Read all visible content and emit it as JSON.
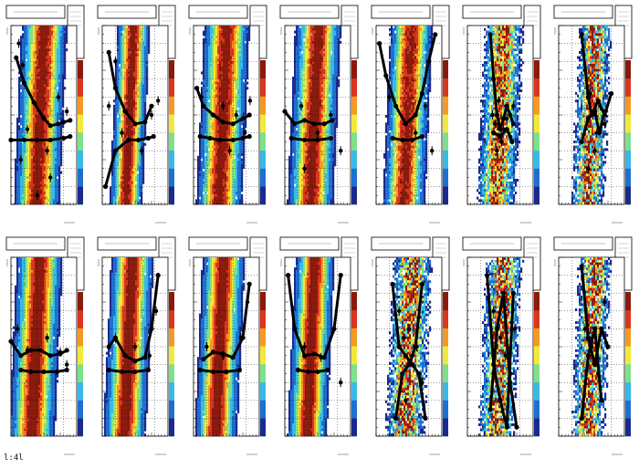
{
  "footer": {
    "text": "l:4l"
  },
  "chart_data": {
    "type": "heatmap",
    "layout": {
      "rows": 2,
      "cols": 7
    },
    "xlim": [
      0,
      1
    ],
    "ylim": [
      0,
      1
    ],
    "colormap": [
      "#1a2a8c",
      "#1f6fd0",
      "#39b9e6",
      "#7fe08a",
      "#f2e93a",
      "#f39a25",
      "#d9361e",
      "#8a1a0c"
    ],
    "panels": [
      {
        "band_center": 0.45,
        "band_width": 0.28,
        "noise": 0.1,
        "upper": {
          "x": [
            0.08,
            0.2,
            0.35,
            0.5,
            0.6,
            0.72,
            0.8,
            0.9
          ],
          "y": [
            0.82,
            0.68,
            0.57,
            0.48,
            0.44,
            0.45,
            0.46,
            0.47
          ]
        },
        "lower": {
          "x": [
            0.0,
            0.2,
            0.4,
            0.6,
            0.8,
            0.9
          ],
          "y": [
            0.36,
            0.36,
            0.36,
            0.36,
            0.37,
            0.38
          ]
        },
        "scatter": {
          "x": [
            0.12,
            0.18,
            0.25,
            0.55,
            0.72,
            0.85,
            0.15,
            0.6,
            0.4
          ],
          "y": [
            0.9,
            0.78,
            0.42,
            0.3,
            0.6,
            0.52,
            0.25,
            0.15,
            0.05
          ]
        }
      },
      {
        "band_center": 0.42,
        "band_width": 0.2,
        "noise": 0.1,
        "upper": {
          "x": [
            0.1,
            0.2,
            0.35,
            0.5,
            0.65,
            0.75
          ],
          "y": [
            0.85,
            0.65,
            0.52,
            0.45,
            0.46,
            0.55
          ]
        },
        "lower": {
          "x": [
            0.05,
            0.2,
            0.4,
            0.55,
            0.7,
            0.78
          ],
          "y": [
            0.1,
            0.3,
            0.36,
            0.36,
            0.37,
            0.38
          ]
        },
        "scatter": {
          "x": [
            0.1,
            0.2,
            0.3,
            0.6,
            0.75,
            0.85
          ],
          "y": [
            0.55,
            0.8,
            0.4,
            0.3,
            0.5,
            0.58
          ]
        }
      },
      {
        "band_center": 0.45,
        "band_width": 0.28,
        "noise": 0.1,
        "upper": {
          "x": [
            0.05,
            0.15,
            0.3,
            0.45,
            0.6,
            0.75,
            0.85
          ],
          "y": [
            0.65,
            0.55,
            0.5,
            0.46,
            0.45,
            0.48,
            0.5
          ]
        },
        "lower": {
          "x": [
            0.1,
            0.25,
            0.4,
            0.6,
            0.75,
            0.85
          ],
          "y": [
            0.38,
            0.37,
            0.36,
            0.36,
            0.37,
            0.38
          ]
        },
        "scatter": {
          "x": [
            0.12,
            0.45,
            0.55,
            0.65,
            0.78,
            0.86
          ],
          "y": [
            0.6,
            0.55,
            0.3,
            0.5,
            0.4,
            0.58
          ]
        }
      },
      {
        "band_center": 0.45,
        "band_width": 0.28,
        "noise": 0.1,
        "upper": {
          "x": [
            0.0,
            0.15,
            0.3,
            0.45,
            0.6,
            0.72
          ],
          "y": [
            0.52,
            0.45,
            0.47,
            0.45,
            0.45,
            0.47
          ]
        },
        "lower": {
          "x": [
            0.1,
            0.3,
            0.5,
            0.7
          ],
          "y": [
            0.37,
            0.36,
            0.36,
            0.37
          ]
        },
        "scatter": {
          "x": [
            0.25,
            0.5,
            0.7,
            0.85,
            0.3
          ],
          "y": [
            0.55,
            0.4,
            0.5,
            0.3,
            0.2
          ]
        }
      },
      {
        "band_center": 0.48,
        "band_width": 0.26,
        "noise": 0.15,
        "upper": {
          "x": [
            0.05,
            0.15,
            0.3,
            0.45,
            0.6,
            0.7,
            0.8,
            0.9
          ],
          "y": [
            0.9,
            0.72,
            0.55,
            0.45,
            0.5,
            0.62,
            0.8,
            0.95
          ]
        },
        "lower": {
          "x": [
            0.25,
            0.4,
            0.55,
            0.7
          ],
          "y": [
            0.37,
            0.36,
            0.36,
            0.38
          ]
        },
        "scatter": {
          "x": [
            0.2,
            0.6,
            0.75,
            0.85
          ],
          "y": [
            0.6,
            0.4,
            0.55,
            0.3
          ]
        }
      },
      {
        "band_center": 0.5,
        "band_width": 0.24,
        "noise": 0.6,
        "upper": {
          "x": [
            0.35,
            0.4,
            0.45,
            0.5,
            0.55,
            0.6,
            0.65,
            0.7
          ],
          "y": [
            0.95,
            0.7,
            0.5,
            0.42,
            0.48,
            0.55,
            0.5,
            0.45
          ]
        },
        "lower": {
          "x": [
            0.4,
            0.5,
            0.6,
            0.68
          ],
          "y": [
            0.4,
            0.38,
            0.42,
            0.35
          ]
        },
        "scatter": {
          "x": [
            0.38,
            0.42,
            0.48,
            0.55,
            0.6,
            0.65,
            0.7,
            0.45,
            0.52
          ],
          "y": [
            0.5,
            0.45,
            0.58,
            0.42,
            0.48,
            0.38,
            0.55,
            0.3,
            0.35
          ]
        }
      },
      {
        "band_center": 0.5,
        "band_width": 0.2,
        "noise": 0.75,
        "upper": {
          "x": [
            0.35,
            0.45,
            0.5,
            0.6,
            0.7,
            0.8
          ],
          "y": [
            0.95,
            0.6,
            0.5,
            0.58,
            0.5,
            0.62
          ]
        },
        "lower": {
          "x": [
            0.35,
            0.45,
            0.55,
            0.62,
            0.7
          ],
          "y": [
            0.35,
            0.48,
            0.52,
            0.4,
            0.52
          ]
        },
        "scatter": {
          "x": [
            0.4,
            0.48,
            0.52,
            0.58,
            0.63,
            0.7,
            0.55,
            0.45
          ],
          "y": [
            0.75,
            0.62,
            0.5,
            0.4,
            0.55,
            0.45,
            0.3,
            0.2
          ]
        }
      },
      {
        "band_center": 0.38,
        "band_width": 0.28,
        "noise": 0.05,
        "upper": {
          "x": [
            0.0,
            0.15,
            0.3,
            0.45,
            0.6,
            0.75,
            0.85
          ],
          "y": [
            0.53,
            0.45,
            0.48,
            0.48,
            0.45,
            0.46,
            0.48
          ]
        },
        "lower": {
          "x": [
            0.15,
            0.3,
            0.5,
            0.7,
            0.85
          ],
          "y": [
            0.37,
            0.36,
            0.36,
            0.36,
            0.37
          ]
        },
        "scatter": {
          "x": [
            0.1,
            0.25,
            0.55,
            0.75,
            0.85
          ],
          "y": [
            0.6,
            0.48,
            0.55,
            0.47,
            0.4
          ]
        }
      },
      {
        "band_center": 0.4,
        "band_width": 0.26,
        "noise": 0.05,
        "upper": {
          "x": [
            0.1,
            0.2,
            0.35,
            0.5,
            0.65,
            0.75,
            0.85
          ],
          "y": [
            0.5,
            0.55,
            0.45,
            0.42,
            0.44,
            0.6,
            0.9
          ]
        },
        "lower": {
          "x": [
            0.1,
            0.3,
            0.5,
            0.7
          ],
          "y": [
            0.37,
            0.36,
            0.36,
            0.37
          ]
        },
        "scatter": {
          "x": [
            0.2,
            0.5,
            0.72,
            0.82
          ],
          "y": [
            0.55,
            0.5,
            0.45,
            0.7
          ]
        }
      },
      {
        "band_center": 0.4,
        "band_width": 0.26,
        "noise": 0.05,
        "upper": {
          "x": [
            0.15,
            0.3,
            0.45,
            0.6,
            0.75,
            0.85
          ],
          "y": [
            0.43,
            0.47,
            0.46,
            0.44,
            0.55,
            0.85
          ]
        },
        "lower": {
          "x": [
            0.1,
            0.3,
            0.5,
            0.7
          ],
          "y": [
            0.37,
            0.36,
            0.36,
            0.37
          ]
        },
        "scatter": {
          "x": [
            0.2,
            0.45,
            0.72,
            0.82
          ],
          "y": [
            0.5,
            0.45,
            0.55,
            0.75
          ]
        }
      },
      {
        "band_center": 0.4,
        "band_width": 0.24,
        "noise": 0.05,
        "upper": {
          "x": [
            0.05,
            0.15,
            0.3,
            0.45,
            0.6,
            0.75,
            0.85
          ],
          "y": [
            0.9,
            0.6,
            0.45,
            0.46,
            0.44,
            0.6,
            0.9
          ]
        },
        "lower": {
          "x": [
            0.2,
            0.35,
            0.5,
            0.65
          ],
          "y": [
            0.37,
            0.36,
            0.36,
            0.37
          ]
        },
        "scatter": {
          "x": [
            0.3,
            0.55,
            0.75,
            0.85
          ],
          "y": [
            0.5,
            0.44,
            0.6,
            0.3
          ]
        }
      },
      {
        "band_center": 0.5,
        "band_width": 0.24,
        "noise": 0.75,
        "upper": {
          "x": [
            0.25,
            0.35,
            0.45,
            0.55,
            0.65,
            0.75
          ],
          "y": [
            0.85,
            0.5,
            0.45,
            0.4,
            0.35,
            0.1
          ]
        },
        "lower": {
          "x": [
            0.3,
            0.4,
            0.5,
            0.6,
            0.7
          ],
          "y": [
            0.1,
            0.35,
            0.4,
            0.5,
            0.85
          ]
        },
        "scatter": {
          "x": [
            0.35,
            0.42,
            0.5,
            0.55,
            0.62,
            0.7,
            0.45
          ],
          "y": [
            0.7,
            0.55,
            0.6,
            0.45,
            0.5,
            0.3,
            0.2
          ]
        }
      },
      {
        "band_center": 0.5,
        "band_width": 0.22,
        "noise": 0.8,
        "upper": {
          "x": [
            0.3,
            0.4,
            0.5,
            0.6,
            0.7
          ],
          "y": [
            0.9,
            0.4,
            0.2,
            0.05,
            0.8
          ]
        },
        "lower": {
          "x": [
            0.35,
            0.45,
            0.55,
            0.65,
            0.75
          ],
          "y": [
            0.15,
            0.6,
            0.8,
            0.3,
            0.05
          ]
        },
        "scatter": {
          "x": [
            0.4,
            0.5,
            0.58,
            0.66,
            0.72
          ],
          "y": [
            0.7,
            0.55,
            0.45,
            0.35,
            0.6
          ]
        }
      },
      {
        "band_center": 0.5,
        "band_width": 0.2,
        "noise": 0.8,
        "upper": {
          "x": [
            0.35,
            0.45,
            0.55,
            0.65,
            0.75
          ],
          "y": [
            0.95,
            0.55,
            0.4,
            0.6,
            0.5
          ]
        },
        "lower": {
          "x": [
            0.35,
            0.45,
            0.55,
            0.65
          ],
          "y": [
            0.1,
            0.45,
            0.6,
            0.2
          ]
        },
        "scatter": {
          "x": [
            0.4,
            0.5,
            0.6,
            0.7
          ],
          "y": [
            0.6,
            0.5,
            0.35,
            0.75
          ]
        }
      }
    ]
  }
}
